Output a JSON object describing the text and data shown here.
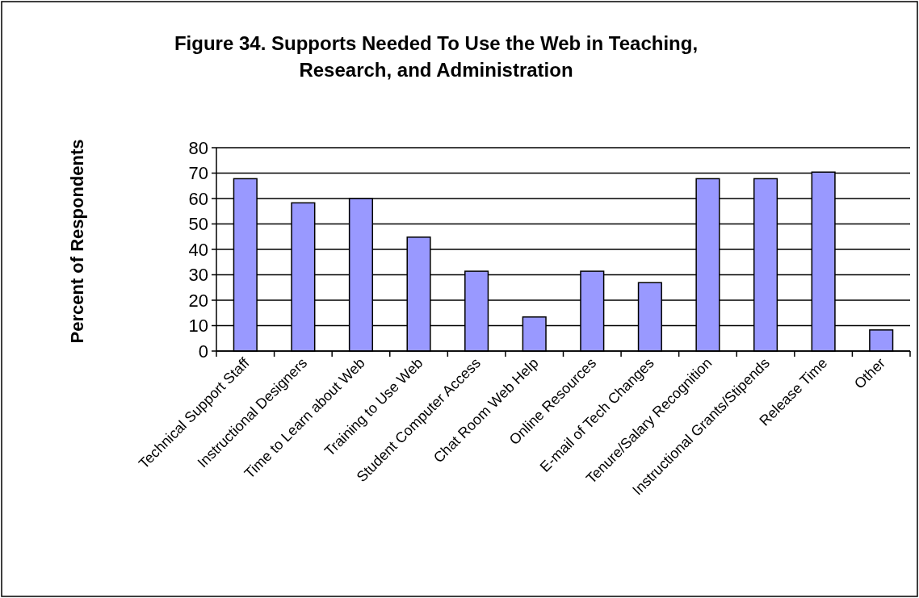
{
  "chart_data": {
    "type": "bar",
    "title": "Figure 34. Supports Needed To Use the Web in Teaching, Research, and Administration",
    "ylabel": "Percent of Respondents",
    "categories": [
      "Technical Support Staff",
      "Instructional Designers",
      "Time to Learn about Web",
      "Training to Use Web",
      "Student Computer Access",
      "Chat Room Web Help",
      "Online Resources",
      "E-mail of Tech Changes",
      "Tenure/Salary Recognition",
      "Instructional Grants/Stipends",
      "Release Time",
      "Other"
    ],
    "values": [
      67.8,
      58.3,
      60,
      44.8,
      31.4,
      13.4,
      31.4,
      26.9,
      67.8,
      67.8,
      70.4,
      8.3
    ],
    "color": "#9999ff",
    "ylim": [
      0,
      80
    ],
    "yticks": [
      0,
      10,
      20,
      30,
      40,
      50,
      60,
      70,
      80
    ],
    "grid": "y"
  }
}
